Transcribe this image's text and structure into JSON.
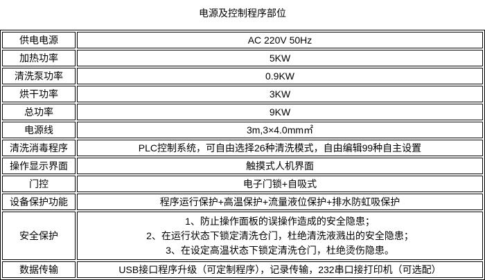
{
  "title": "电源及控制程序部位",
  "rows": [
    {
      "label": "供电电源",
      "value": "AC 220V 50Hz"
    },
    {
      "label": "加热功率",
      "value": "5KW"
    },
    {
      "label": "清洗泵功率",
      "value": "0.9KW"
    },
    {
      "label": "烘干功率",
      "value": "3KW"
    },
    {
      "label": "总功率",
      "value": "9KW"
    },
    {
      "label": "电源线",
      "value": "3m,3×4.0mm㎡"
    },
    {
      "label": "清洗消毒程序",
      "value": "PLC控制系统，可自由选择26种清洗模式，自由编辑99种自主设置"
    },
    {
      "label": "操作显示界面",
      "value": "触摸式人机界面"
    },
    {
      "label": "门控",
      "value": "电子门锁+自吸式"
    },
    {
      "label": "设备保护功能",
      "value": "程序运行保护+高温保护+流量液位保护+排水防虹吸保护"
    },
    {
      "label": "安全保护",
      "lines": [
        "1、防止操作面板的误操作造成的安全隐患；",
        "2、在运行状态下锁定清洗仓门，杜绝清洗液溅出的安全隐患；",
        "3、在设定高温状态下锁定清洗仓门，杜绝烫伤隐患。"
      ]
    },
    {
      "label": "数据传输",
      "value": "USB接口程序升级（可定制程序），记录传输，232串口接打印机（可选配）"
    }
  ]
}
